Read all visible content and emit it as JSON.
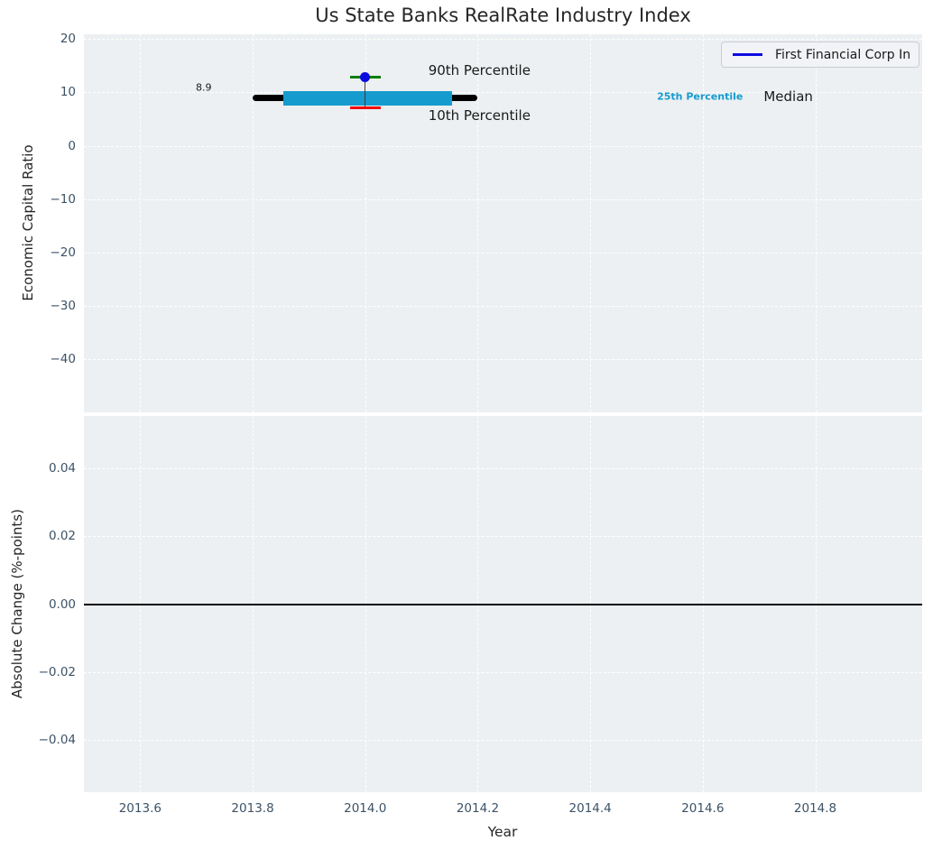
{
  "title": "Us State Banks RealRate Industry Index",
  "xlabel": "Year",
  "ylabel_top": "Economic Capital Ratio",
  "ylabel_bottom": "Absolute Change (%-points)",
  "legend": {
    "label": "First Financial Corp In"
  },
  "colors": {
    "plot_bg": "#ecf0f2",
    "grid": "#ffffff",
    "tick_text": "#3c5266",
    "text": "#262626",
    "median_line": "#000000",
    "percentile_band": "#169bce",
    "company_blue": "#0b0be0",
    "cap_green": "#008000",
    "cap_red": "#f00000",
    "zero_line": "#000000",
    "errorbar_stem": "#3a3a3a"
  },
  "chart_data": [
    {
      "type": "line",
      "subplot": "top",
      "title": "Us State Banks RealRate Industry Index",
      "xlabel": "Year",
      "ylabel": "Economic Capital Ratio",
      "xlim": [
        2013.5,
        2014.99
      ],
      "ylim": [
        -50,
        20.9
      ],
      "grid": true,
      "legend_position": "upper right",
      "legend_entries": [
        "First Financial Corp In"
      ],
      "xticks": {
        "values": [
          2013.6,
          2013.8,
          2014.0,
          2014.2,
          2014.4,
          2014.6,
          2014.8
        ],
        "labels": [
          "2013.6",
          "2013.8",
          "2014.0",
          "2014.2",
          "2014.4",
          "2014.6",
          "2014.8"
        ]
      },
      "yticks": {
        "values": [
          20,
          10,
          0,
          -10,
          -20,
          -30,
          -40
        ],
        "labels": [
          "20",
          "10",
          "0",
          "−10",
          "−20",
          "−30",
          "−40"
        ]
      },
      "show_xtick_labels": false,
      "series": [
        {
          "name": "industry-median",
          "kind": "thick-line",
          "y": 8.9,
          "x_start": 2013.8,
          "x_end": 2014.2,
          "color_key": "median_line",
          "lw": 7
        },
        {
          "name": "percentile-band-25-75",
          "kind": "band",
          "y_low": 7.6,
          "y_high": 10.2,
          "x_start": 2013.855,
          "x_end": 2014.155,
          "color_key": "percentile_band"
        },
        {
          "name": "first-financial-corp-point",
          "kind": "point-errorbar",
          "x": 2014.0,
          "value": 12.8,
          "p90": 12.9,
          "p10": 7.15,
          "point_color_key": "company_blue",
          "top_cap_color_key": "cap_green",
          "bottom_cap_color_key": "cap_red",
          "stem_color_key": "errorbar_stem"
        }
      ],
      "annotations": [
        {
          "text": "8.9",
          "x": 2013.713,
          "y": 10.9,
          "style": "small"
        },
        {
          "text": "90th Percentile",
          "x": 2014.203,
          "y": 14.1,
          "style": "big"
        },
        {
          "text": "10th Percentile",
          "x": 2014.203,
          "y": 5.6,
          "style": "big"
        },
        {
          "text": "25th Percentile",
          "x": 2014.595,
          "y": 9.3,
          "style": "cyan"
        },
        {
          "text": "Median",
          "x": 2014.752,
          "y": 9.3,
          "style": "big"
        }
      ]
    },
    {
      "type": "line",
      "subplot": "bottom",
      "title": "",
      "xlabel": "Year",
      "ylabel": "Absolute Change (%-points)",
      "xlim": [
        2013.5,
        2014.99
      ],
      "ylim": [
        -0.0555,
        0.0555
      ],
      "grid": true,
      "xticks": {
        "values": [
          2013.6,
          2013.8,
          2014.0,
          2014.2,
          2014.4,
          2014.6,
          2014.8
        ],
        "labels": [
          "2013.6",
          "2013.8",
          "2014.0",
          "2014.2",
          "2014.4",
          "2014.6",
          "2014.8"
        ]
      },
      "yticks": {
        "values": [
          0.04,
          0.02,
          0,
          -0.02,
          -0.04
        ],
        "labels": [
          "0.04",
          "0.02",
          "0.00",
          "−0.02",
          "−0.04"
        ]
      },
      "show_xtick_labels": true,
      "series": [
        {
          "name": "zero-change-line",
          "kind": "hline",
          "y": 0,
          "color_key": "zero_line",
          "lw": 2
        }
      ],
      "annotations": []
    }
  ]
}
